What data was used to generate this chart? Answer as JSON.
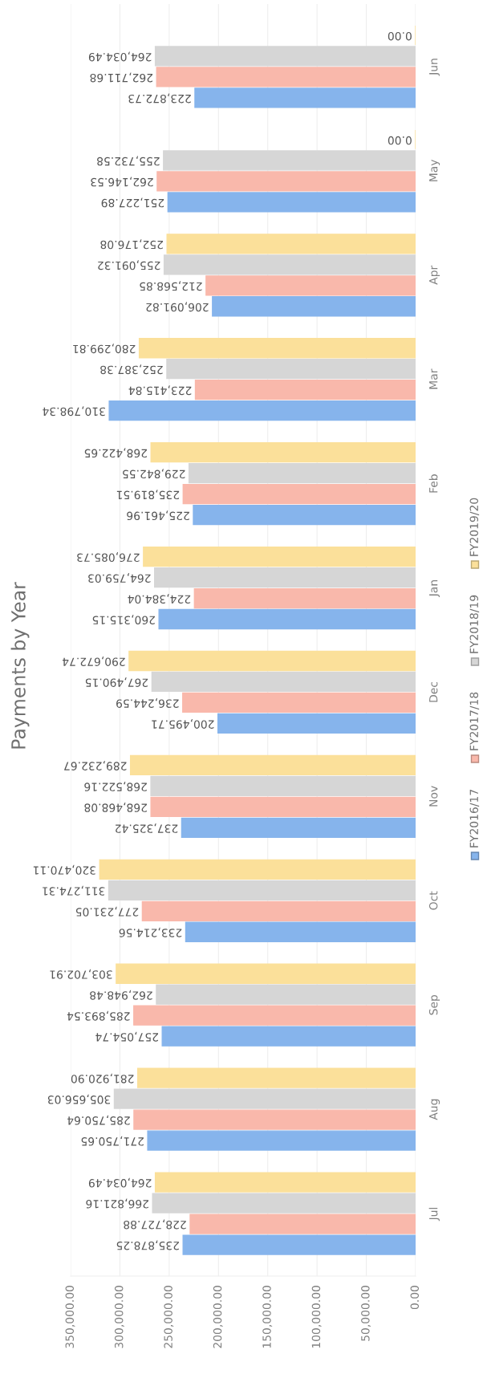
{
  "chart_data": {
    "type": "bar",
    "orientation": "horizontal",
    "title": "Payments by Year",
    "categories": [
      "Jun",
      "May",
      "Apr",
      "Mar",
      "Feb",
      "Jan",
      "Dec",
      "Nov",
      "Oct",
      "Sep",
      "Aug",
      "Jul"
    ],
    "series": [
      {
        "name": "FY2016/17",
        "color": "#86b4ec",
        "values": [
          223872.73,
          251227.89,
          206091.82,
          310798.34,
          225461.96,
          260315.15,
          200495.71,
          237325.42,
          233214.56,
          257054.74,
          271750.65,
          235878.25
        ],
        "value_labels": [
          "223,872.73",
          "251,227.89",
          "206,091.82",
          "310,798.34",
          "225,461.96",
          "260,315.15",
          "200,495.71",
          "237,325.42",
          "233,214.56",
          "257,054.74",
          "271,750.65",
          "235,878.25"
        ]
      },
      {
        "name": "FY2017/18",
        "color": "#f9b8ab",
        "values": [
          262711.68,
          262146.53,
          212568.85,
          223415.84,
          235819.51,
          224384.04,
          236244.59,
          268468.08,
          277231.05,
          285893.54,
          285750.64,
          228727.88
        ],
        "value_labels": [
          "262,711.68",
          "262,146.53",
          "212,568.85",
          "223,415.84",
          "235,819.51",
          "224,384.04",
          "236,244.59",
          "268,468.08",
          "277,231.05",
          "285,893.54",
          "285,750.64",
          "228,727.88"
        ]
      },
      {
        "name": "FY2018/19",
        "color": "#d6d6d6",
        "values": [
          264034.49,
          255732.58,
          255091.32,
          252387.38,
          229842.55,
          264759.03,
          267490.15,
          268522.16,
          311274.31,
          262948.48,
          305656.03,
          266821.16
        ],
        "value_labels": [
          "264,034.49",
          "255,732.58",
          "255,091.32",
          "252,387.38",
          "229,842.55",
          "264,759.03",
          "267,490.15",
          "268,522.16",
          "311,274.31",
          "262,948.48",
          "305,656.03",
          "266,821.16"
        ]
      },
      {
        "name": "FY2019/20",
        "color": "#fbe09a",
        "values": [
          0.0,
          0.0,
          252176.08,
          280299.81,
          268422.65,
          276085.73,
          290672.74,
          289232.67,
          320470.11,
          303702.91,
          281920.9,
          264034.49
        ],
        "value_labels": [
          "0.00",
          "0.00",
          "252,176.08",
          "280,299.81",
          "268,422.65",
          "276,085.73",
          "290,672.74",
          "289,232.67",
          "320,470.11",
          "303,702.91",
          "281,920.90",
          "264,034.49"
        ]
      }
    ],
    "xlim": [
      350000,
      0
    ],
    "xticks": [
      {
        "value": 350000,
        "label": "350,000.00"
      },
      {
        "value": 300000,
        "label": "300,000.00"
      },
      {
        "value": 250000,
        "label": "250,000.00"
      },
      {
        "value": 200000,
        "label": "200,000.00"
      },
      {
        "value": 150000,
        "label": "150,000.00"
      },
      {
        "value": 100000,
        "label": "100,000.00"
      },
      {
        "value": 50000,
        "label": "50,000.00"
      },
      {
        "value": 0,
        "label": "0.00"
      }
    ],
    "grid": "x",
    "legend": "right"
  }
}
